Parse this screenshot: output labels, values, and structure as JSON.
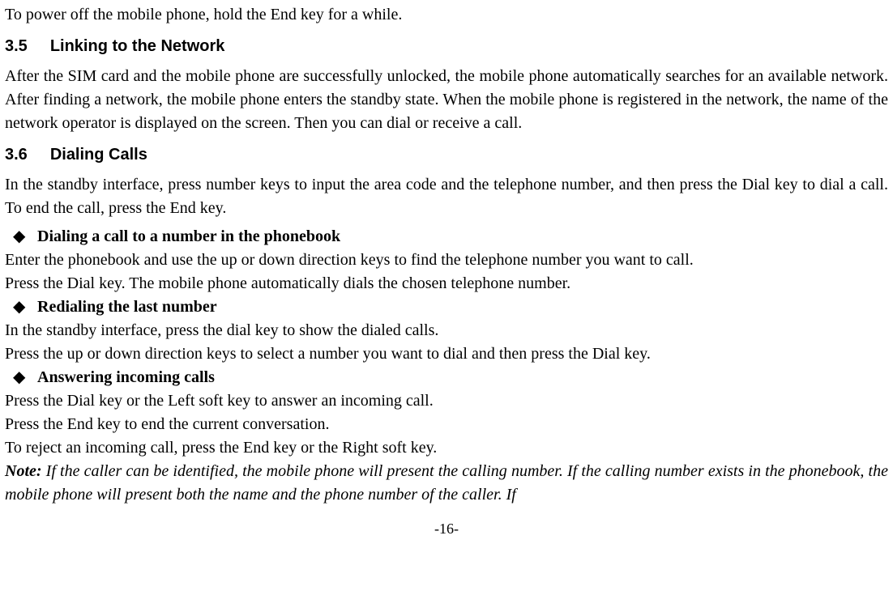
{
  "intro_para": "To power off the mobile phone, hold the End key for a while.",
  "h35": {
    "num": "3.5",
    "title": "Linking to the Network"
  },
  "p35": "After the SIM card and the mobile phone are successfully unlocked, the mobile phone automatically searches for an available network. After finding a network, the mobile phone enters the standby state. When the mobile phone is registered in the network, the name of the network operator is displayed on the screen. Then you can dial or receive a call.",
  "h36": {
    "num": "3.6",
    "title": "Dialing Calls"
  },
  "p36a": "In the standby interface, press number keys to input the area code and the telephone number, and then press the Dial key to dial a call. To end the call, press the End key.",
  "b1": "Dialing a call to a number in the phonebook",
  "p_b1a": "Enter the phonebook and use the up or down direction keys to find the telephone number you want to call.",
  "p_b1b": "Press the Dial key. The mobile phone automatically dials the chosen telephone number.",
  "b2": "Redialing the last number",
  "p_b2a": "In the standby interface, press the dial key to show the dialed calls.",
  "p_b2b": "Press the up or down direction keys to select a number you want to dial and then press the Dial key.",
  "b3": "Answering incoming calls",
  "p_b3a": "Press the Dial key or the Left soft key to answer an incoming call.",
  "p_b3b": "Press the End key to end the current conversation.",
  "p_b3c": "To reject an incoming call, press the End key or the Right soft key.",
  "note_label": "Note:",
  "note_body": " If the caller can be identified, the mobile phone will present the calling number. If the calling number exists in the phonebook, the mobile phone will present both the name and the phone number of the caller. If",
  "page_num": "-16-"
}
